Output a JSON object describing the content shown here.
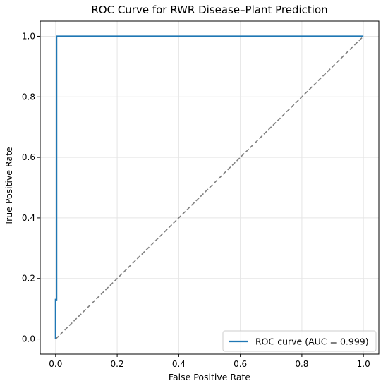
{
  "chart_data": {
    "type": "line",
    "title": "ROC Curve for RWR Disease–Plant Prediction",
    "xlabel": "False Positive Rate",
    "ylabel": "True Positive Rate",
    "xlim": [
      -0.05,
      1.05
    ],
    "ylim": [
      -0.05,
      1.05
    ],
    "xticks": [
      "0.0",
      "0.2",
      "0.4",
      "0.6",
      "0.8",
      "1.0"
    ],
    "yticks": [
      "0.0",
      "0.2",
      "0.4",
      "0.6",
      "0.8",
      "1.0"
    ],
    "grid": true,
    "legend_position": "lower-right",
    "series": [
      {
        "name": "ROC curve (AUC = 0.999)",
        "color": "#1f77b4",
        "style": "solid",
        "x": [
          0.0,
          0.0,
          0.003,
          0.003,
          1.0
        ],
        "y": [
          0.0,
          0.13,
          0.13,
          1.0,
          1.0
        ]
      }
    ],
    "reference_line": {
      "color": "#808080",
      "style": "dashed",
      "x": [
        0.0,
        1.0
      ],
      "y": [
        0.0,
        1.0
      ]
    }
  }
}
